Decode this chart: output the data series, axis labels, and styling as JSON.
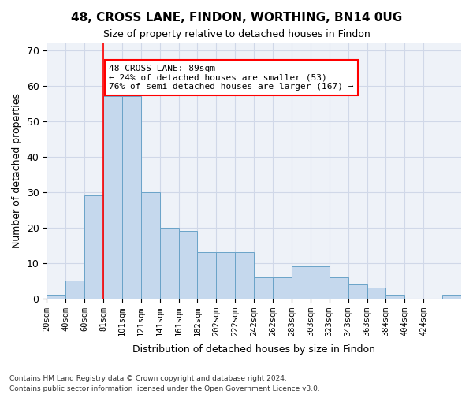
{
  "title": "48, CROSS LANE, FINDON, WORTHING, BN14 0UG",
  "subtitle": "Size of property relative to detached houses in Findon",
  "xlabel": "Distribution of detached houses by size in Findon",
  "ylabel": "Number of detached properties",
  "bar_values": [
    1,
    5,
    29,
    57,
    57,
    30,
    20,
    19,
    13,
    13,
    13,
    6,
    6,
    9,
    9,
    6,
    4,
    3,
    1,
    0,
    0,
    1
  ],
  "bin_labels": [
    "20sqm",
    "40sqm",
    "60sqm",
    "81sqm",
    "101sqm",
    "121sqm",
    "141sqm",
    "161sqm",
    "182sqm",
    "202sqm",
    "222sqm",
    "242sqm",
    "262sqm",
    "283sqm",
    "303sqm",
    "323sqm",
    "343sqm",
    "363sqm",
    "384sqm",
    "404sqm",
    "424sqm"
  ],
  "bar_color": "#c5d8ed",
  "bar_edge_color": "#6aa3c8",
  "grid_color": "#d0d8e8",
  "background_color": "#eef2f8",
  "property_line_x": 3,
  "property_value": "89sqm",
  "annotation_text": "48 CROSS LANE: 89sqm\n← 24% of detached houses are smaller (53)\n76% of semi-detached houses are larger (167) →",
  "annotation_box_color": "white",
  "annotation_box_edge_color": "red",
  "ylim": [
    0,
    72
  ],
  "footer1": "Contains HM Land Registry data © Crown copyright and database right 2024.",
  "footer2": "Contains public sector information licensed under the Open Government Licence v3.0."
}
